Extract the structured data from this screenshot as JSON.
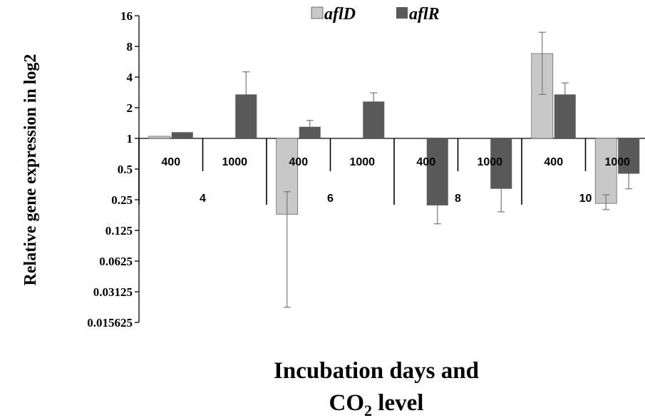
{
  "chart_data": {
    "type": "bar",
    "scale": "log2",
    "ylabel": "Relative gene expression in log2",
    "xlabel_line1": "Incubation days and",
    "xlabel_line2_main": "CO",
    "xlabel_line2_sub": "2",
    "xlabel_line2_rest": " level",
    "yticks": [
      {
        "value": 16,
        "label": "16"
      },
      {
        "value": 8,
        "label": "8"
      },
      {
        "value": 4,
        "label": "4"
      },
      {
        "value": 2,
        "label": "2"
      },
      {
        "value": 1,
        "label": "1"
      },
      {
        "value": 0.5,
        "label": "0.5"
      },
      {
        "value": 0.25,
        "label": "0.25"
      },
      {
        "value": 0.125,
        "label": "0.125"
      },
      {
        "value": 0.0625,
        "label": "0.0625"
      },
      {
        "value": 0.03125,
        "label": "0.03125"
      },
      {
        "value": 0.015625,
        "label": "0.015625"
      }
    ],
    "ylim": [
      0.015625,
      16
    ],
    "day_labels": [
      "4",
      "6",
      "8",
      "10"
    ],
    "co2_labels": [
      "400",
      "1000",
      "400",
      "1000",
      "400",
      "1000",
      "400",
      "1000"
    ],
    "series": [
      {
        "name": "aflD",
        "color": "#c8c8c8",
        "values": [
          1.05,
          null,
          0.18,
          null,
          null,
          null,
          6.8,
          0.23
        ],
        "err_high": [
          null,
          null,
          0.3,
          null,
          null,
          null,
          11.0,
          0.28
        ],
        "err_low": [
          null,
          null,
          0.022,
          null,
          null,
          null,
          2.7,
          0.2
        ]
      },
      {
        "name": "aflR",
        "color": "#595959",
        "values": [
          1.15,
          2.7,
          1.3,
          2.3,
          0.22,
          0.32,
          2.7,
          0.45
        ],
        "err_high": [
          null,
          4.5,
          1.5,
          2.8,
          null,
          null,
          3.5,
          null
        ],
        "err_low": [
          null,
          null,
          null,
          null,
          0.145,
          0.19,
          null,
          0.32
        ]
      }
    ],
    "legend": {
      "position": "top-center"
    }
  }
}
